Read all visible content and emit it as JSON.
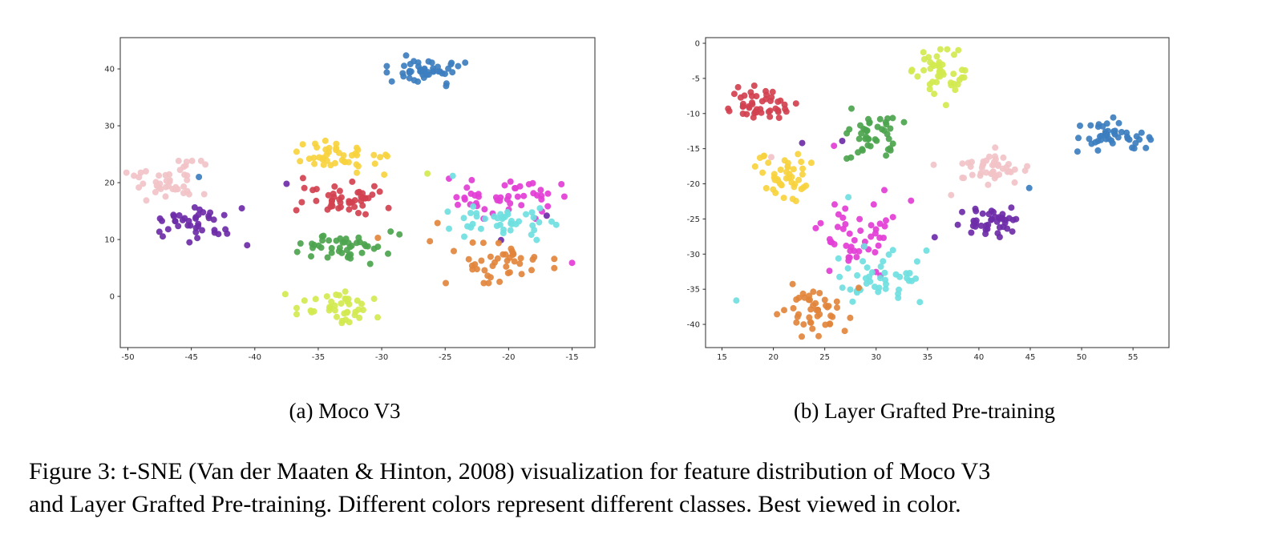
{
  "figure": {
    "subcaption_a": "(a) Moco V3",
    "subcaption_b": "(b) Layer Grafted Pre-training",
    "caption_line1": "Figure 3: t-SNE (Van der Maaten & Hinton, 2008) visualization for feature distribution of Moco V3",
    "caption_line2": "and Layer Grafted Pre-training. Different colors represent different classes. Best viewed in color."
  },
  "chart_data": [
    {
      "type": "scatter",
      "title": "(a) Moco V3",
      "xlim": [
        -50.6,
        -13.2
      ],
      "ylim": [
        -9,
        45.5
      ],
      "xticks": [
        -50,
        -45,
        -40,
        -35,
        -30,
        -25,
        -20,
        -15
      ],
      "yticks": [
        0,
        10,
        20,
        30,
        40
      ],
      "grid": false,
      "legend": "none",
      "clusters": [
        {
          "name": "blue",
          "color": "#3c7ebf",
          "cx": -26.3,
          "cy": 39.5,
          "sx": 1.5,
          "sy": 1.3,
          "n": 46,
          "extra": [
            [
              -29.2,
              37.8
            ],
            [
              -44.4,
              21.0
            ]
          ]
        },
        {
          "name": "pink",
          "color": "#f2c3c8",
          "cx": -47.2,
          "cy": 20.3,
          "sx": 1.7,
          "sy": 1.6,
          "n": 42,
          "extra": [
            [
              -43.9,
              23.2
            ]
          ]
        },
        {
          "name": "purple",
          "color": "#6e2ca8",
          "cx": -44.3,
          "cy": 12.8,
          "sx": 1.9,
          "sy": 1.5,
          "n": 40,
          "extra": [
            [
              -40.6,
              9.0
            ],
            [
              -37.5,
              19.8
            ],
            [
              -20.6,
              9.9
            ],
            [
              -17.0,
              14.2
            ]
          ]
        },
        {
          "name": "yellow",
          "color": "#f7d23e",
          "cx": -33.3,
          "cy": 24.8,
          "sx": 1.7,
          "sy": 1.4,
          "n": 42,
          "extra": [
            [
              -29.8,
              21.4
            ]
          ]
        },
        {
          "name": "red",
          "color": "#d24150",
          "cx": -33.2,
          "cy": 17.3,
          "sx": 1.7,
          "sy": 1.3,
          "n": 46,
          "extra": [
            [
              -36.2,
              20.8
            ]
          ]
        },
        {
          "name": "green",
          "color": "#4da44e",
          "cx": -33.2,
          "cy": 8.8,
          "sx": 1.7,
          "sy": 1.4,
          "n": 42,
          "extra": [
            [
              -29.3,
              11.4
            ],
            [
              -28.6,
              10.9
            ]
          ]
        },
        {
          "name": "lime",
          "color": "#d3e94f",
          "cx": -33.4,
          "cy": -2.2,
          "sx": 1.5,
          "sy": 1.6,
          "n": 40,
          "extra": [
            [
              -37.6,
              0.4
            ],
            [
              -26.4,
              21.6
            ]
          ]
        },
        {
          "name": "magenta",
          "color": "#e33ed6",
          "cx": -19.8,
          "cy": 17.4,
          "sx": 2.0,
          "sy": 1.7,
          "n": 44,
          "extra": [
            [
              -15.0,
              5.9
            ],
            [
              -24.7,
              20.7
            ],
            [
              -24.0,
              16.1
            ]
          ]
        },
        {
          "name": "cyan",
          "color": "#6fdfe0",
          "cx": -20.3,
          "cy": 13.0,
          "sx": 2.0,
          "sy": 1.4,
          "n": 40,
          "extra": [
            [
              -24.4,
              21.2
            ],
            [
              -24.8,
              14.9
            ],
            [
              -23.5,
              10.5
            ]
          ]
        },
        {
          "name": "orange",
          "color": "#e2853c",
          "cx": -20.8,
          "cy": 6.3,
          "sx": 2.0,
          "sy": 1.8,
          "n": 42,
          "extra": [
            [
              -26.2,
              9.7
            ],
            [
              -30.3,
              10.3
            ],
            [
              -25.6,
              12.9
            ]
          ]
        }
      ]
    },
    {
      "type": "scatter",
      "title": "(b) Layer Grafted Pre-training",
      "xlim": [
        13.4,
        58.5
      ],
      "ylim": [
        -43.3,
        0.8
      ],
      "xticks": [
        15,
        20,
        25,
        30,
        35,
        40,
        45,
        50,
        55
      ],
      "yticks": [
        0,
        -5,
        -10,
        -15,
        -20,
        -25,
        -30,
        -35,
        -40
      ],
      "grid": false,
      "legend": "none",
      "clusters": [
        {
          "name": "red",
          "color": "#d24150",
          "cx": 18.9,
          "cy": -9.0,
          "sx": 1.5,
          "sy": 1.4,
          "n": 45,
          "extra": [
            [
              16.2,
              -7.2
            ]
          ]
        },
        {
          "name": "yellow",
          "color": "#f7d23e",
          "cx": 21.3,
          "cy": -19.2,
          "sx": 1.4,
          "sy": 1.7,
          "n": 42,
          "extra": [
            [
              18.7,
              -16.3
            ]
          ]
        },
        {
          "name": "lime",
          "color": "#d3e94f",
          "cx": 36.2,
          "cy": -4.6,
          "sx": 1.4,
          "sy": 1.7,
          "n": 42,
          "extra": [
            [
              36.8,
              -8.8
            ]
          ]
        },
        {
          "name": "green",
          "color": "#4da44e",
          "cx": 30.0,
          "cy": -13.0,
          "sx": 1.3,
          "sy": 1.7,
          "n": 42,
          "extra": [
            [
              27.6,
              -9.3
            ]
          ]
        },
        {
          "name": "pink",
          "color": "#f2c3c8",
          "cx": 41.2,
          "cy": -17.8,
          "sx": 1.5,
          "sy": 1.4,
          "n": 42,
          "extra": [
            [
              44.7,
              -17.5
            ],
            [
              35.6,
              -17.3
            ],
            [
              37.3,
              -21.6
            ],
            [
              19.8,
              -16.2
            ]
          ]
        },
        {
          "name": "blue",
          "color": "#3c7ebf",
          "cx": 53.2,
          "cy": -13.2,
          "sx": 1.6,
          "sy": 1.2,
          "n": 46,
          "extra": [
            [
              49.6,
              -15.4
            ],
            [
              44.9,
              -20.6
            ]
          ]
        },
        {
          "name": "purple",
          "color": "#6e2ca8",
          "cx": 41.0,
          "cy": -25.2,
          "sx": 1.6,
          "sy": 1.2,
          "n": 42,
          "extra": [
            [
              35.7,
              -27.6
            ],
            [
              26.7,
              -13.9
            ],
            [
              22.8,
              -14.2
            ]
          ]
        },
        {
          "name": "magenta",
          "color": "#e33ed6",
          "cx": 28.3,
          "cy": -28.0,
          "sx": 1.9,
          "sy": 2.3,
          "n": 44,
          "extra": [
            [
              33.4,
              -22.4
            ],
            [
              24.6,
              -25.6
            ],
            [
              25.9,
              -14.6
            ],
            [
              30.8,
              -20.9
            ]
          ]
        },
        {
          "name": "cyan",
          "color": "#6fdfe0",
          "cx": 30.3,
          "cy": -33.3,
          "sx": 1.8,
          "sy": 2.0,
          "n": 44,
          "extra": [
            [
              16.4,
              -36.6
            ],
            [
              27.3,
              -21.9
            ],
            [
              34.9,
              -29.5
            ]
          ]
        },
        {
          "name": "orange",
          "color": "#e2853c",
          "cx": 24.0,
          "cy": -38.0,
          "sx": 1.7,
          "sy": 1.7,
          "n": 44,
          "extra": [
            [
              28.3,
              -34.8
            ]
          ]
        }
      ]
    }
  ]
}
